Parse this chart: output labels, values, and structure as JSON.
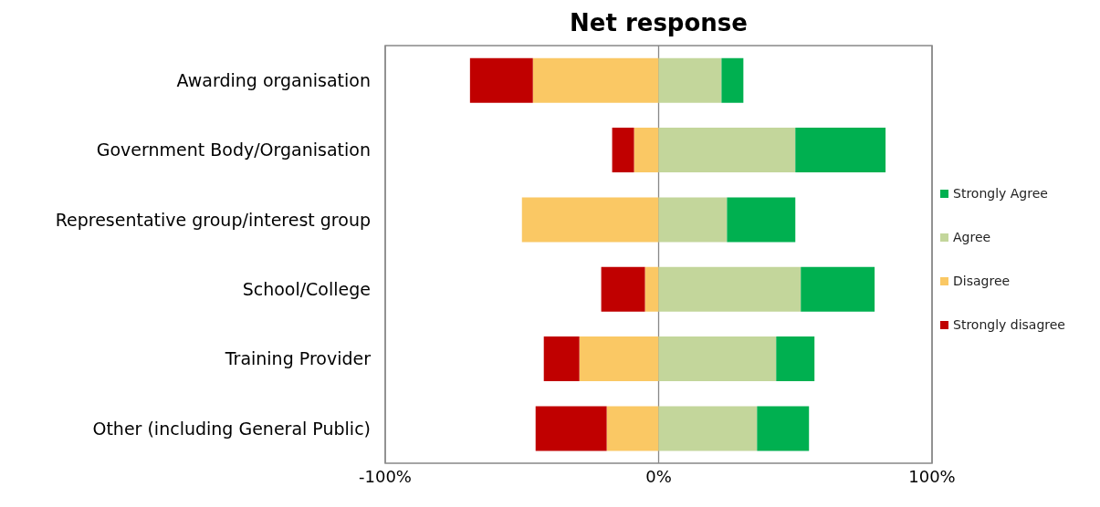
{
  "chart_data": {
    "type": "bar",
    "orientation": "horizontal",
    "stacked": true,
    "title": "Net response",
    "categories": [
      "Awarding organisation",
      "Government Body/Organisation",
      "Representative group/interest group",
      "School/College",
      "Training Provider",
      "Other (including General Public)"
    ],
    "series": [
      {
        "name": "Disagree",
        "color": "#fac864",
        "values": [
          -46,
          -9,
          -50,
          -5,
          -29,
          -19
        ]
      },
      {
        "name": "Strongly disagree",
        "color": "#c00000",
        "values": [
          -23,
          -8,
          0,
          -16,
          -13,
          -26
        ]
      },
      {
        "name": "Agree",
        "color": "#c3d69b",
        "values": [
          23,
          50,
          25,
          52,
          43,
          36
        ]
      },
      {
        "name": "Strongly Agree",
        "color": "#00b050",
        "values": [
          8,
          33,
          25,
          27,
          14,
          19
        ]
      }
    ],
    "xlim": [
      -100,
      100
    ],
    "xticks": [
      {
        "value": -100,
        "label": "-100%"
      },
      {
        "value": 0,
        "label": "0%"
      },
      {
        "value": 100,
        "label": "100%"
      }
    ],
    "grid": "x",
    "legend": "right"
  }
}
